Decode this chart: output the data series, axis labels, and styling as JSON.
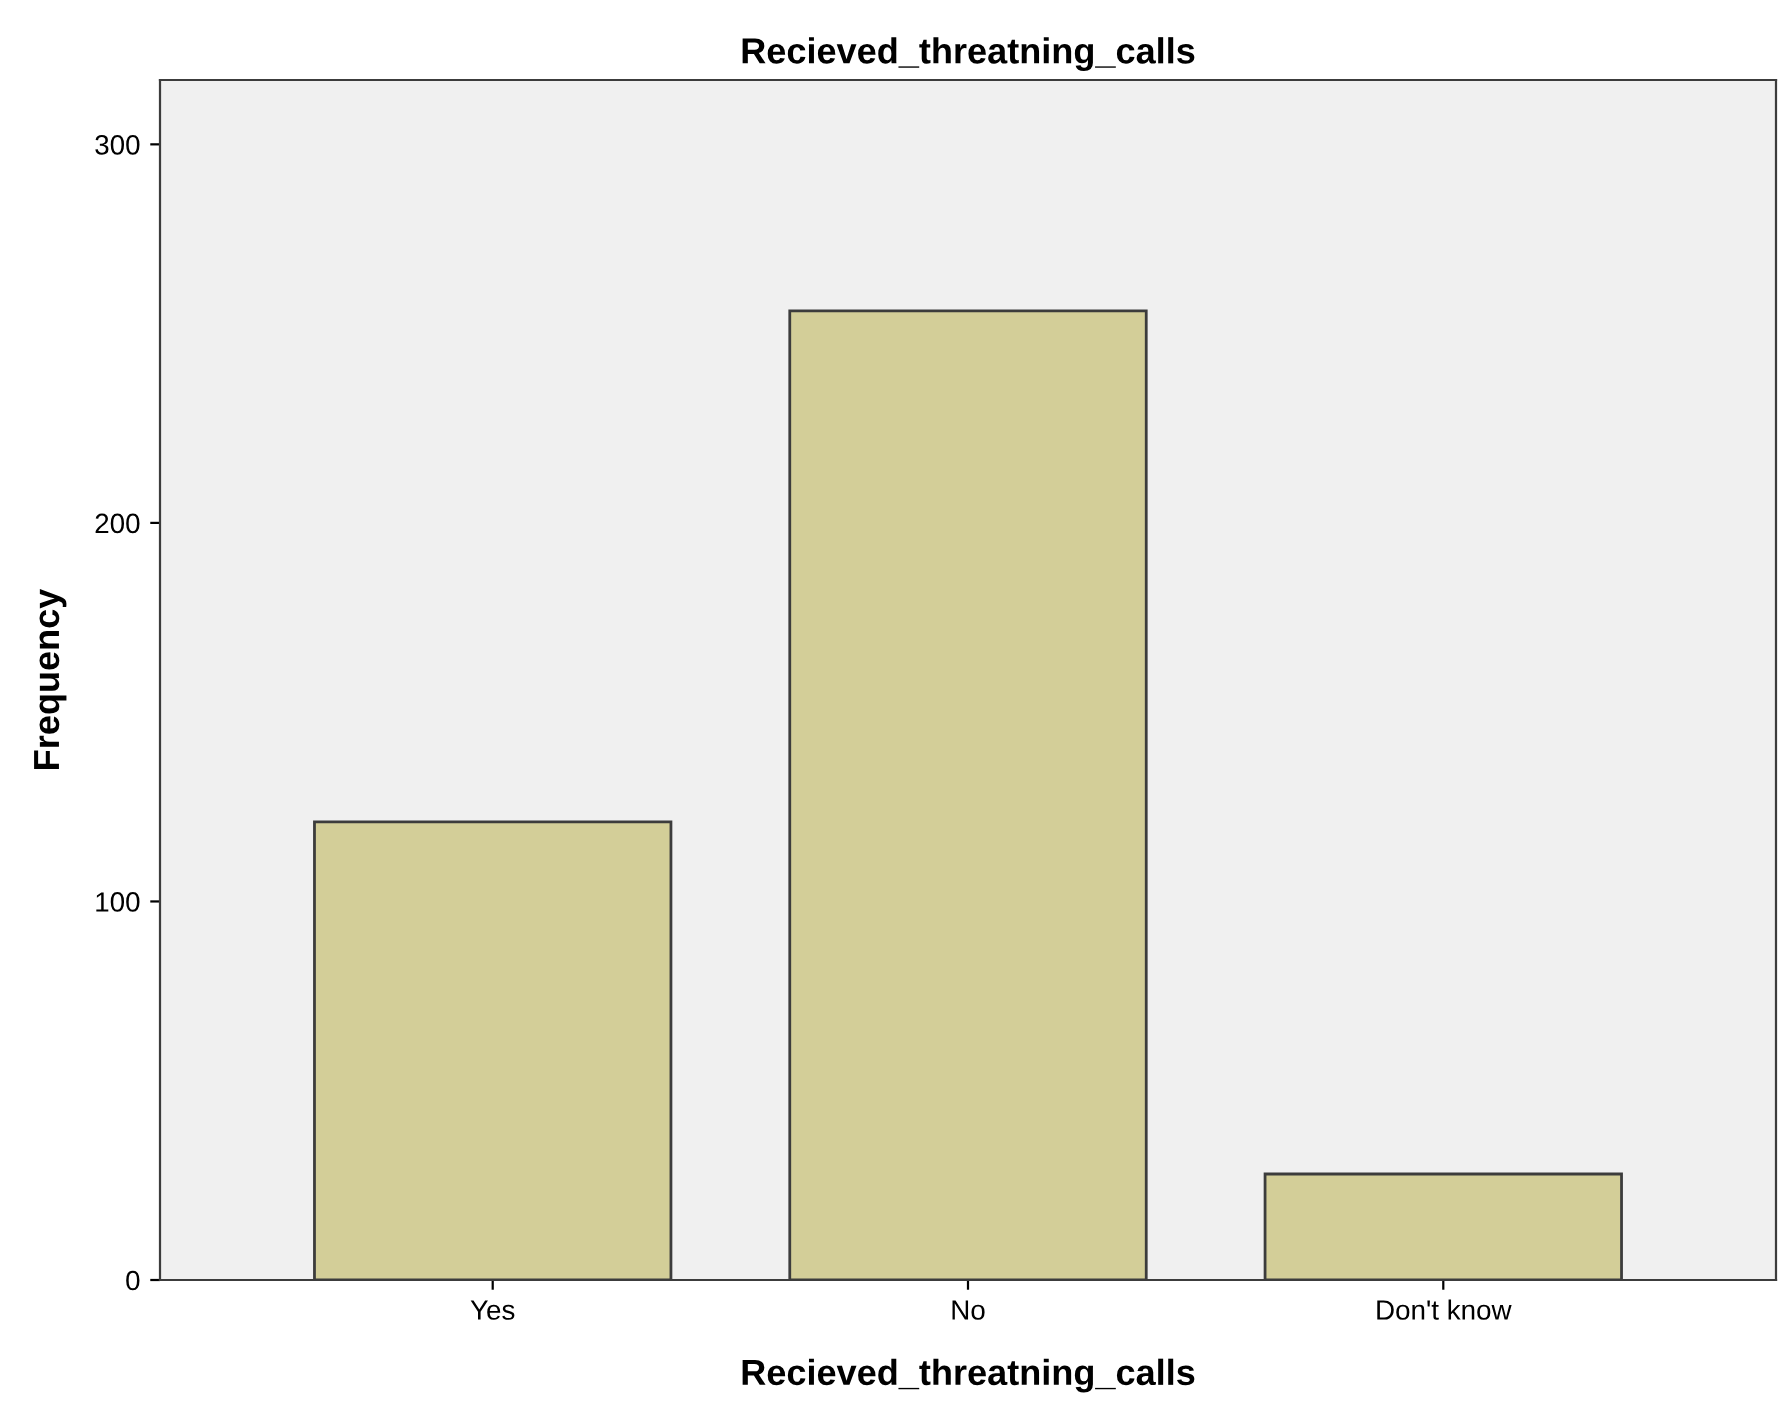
{
  "chart_data": {
    "type": "bar",
    "title": "Recieved_threatning_calls",
    "xlabel": "Recieved_threatning_calls",
    "ylabel": "Frequency",
    "categories": [
      "Yes",
      "No",
      "Don't know"
    ],
    "values": [
      121,
      256,
      28
    ],
    "color": "#d3ce98",
    "ylim": [
      0,
      317
    ],
    "yticks": [
      0,
      100,
      200,
      300
    ],
    "grid": false
  }
}
